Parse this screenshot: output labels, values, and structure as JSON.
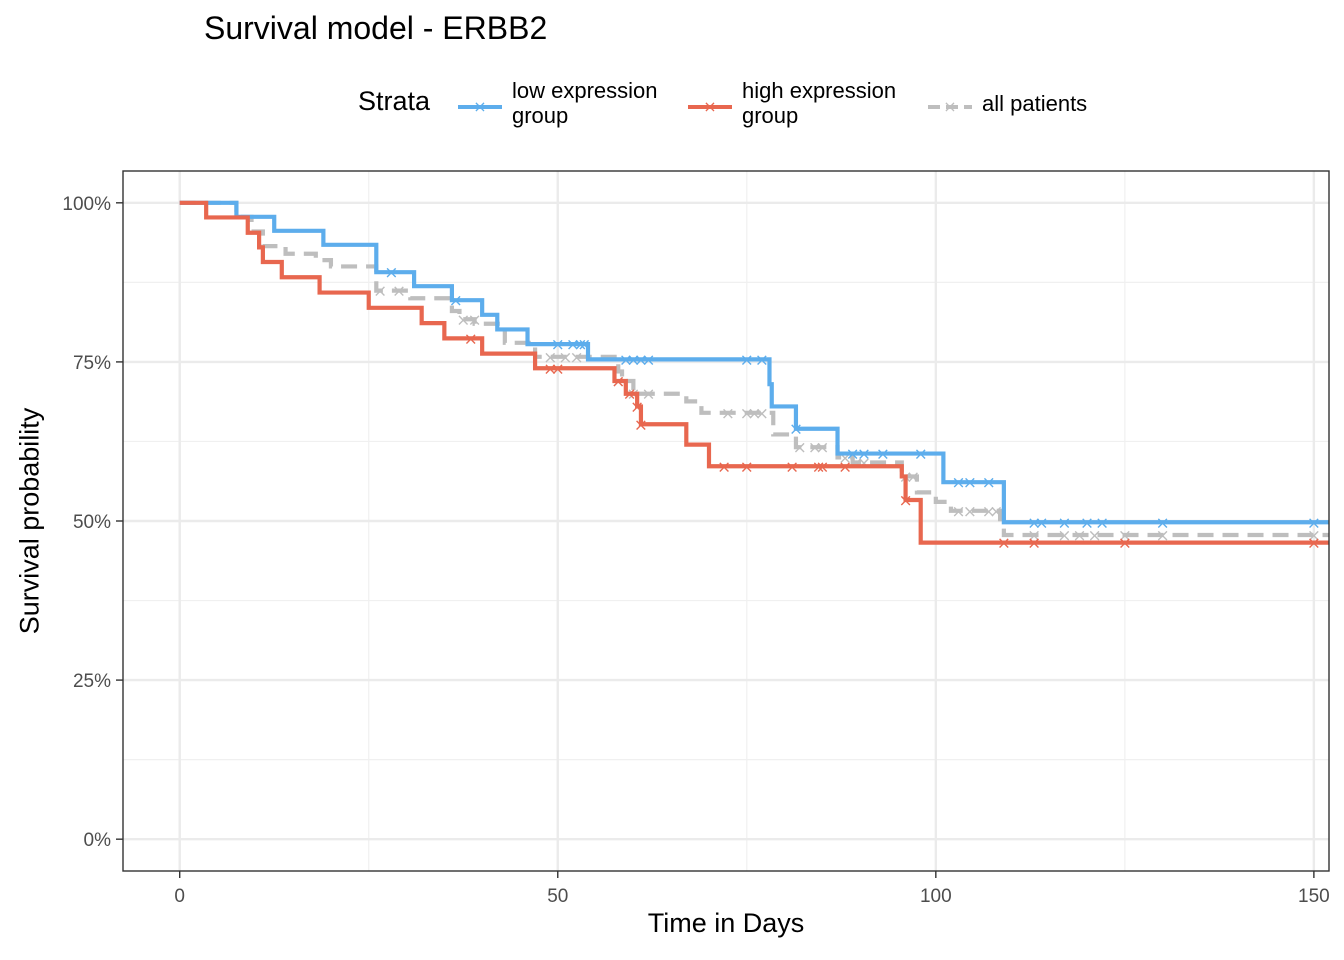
{
  "title": "Survival model - ERBB2",
  "legend": {
    "title": "Strata",
    "items": [
      {
        "label": "low expression\ngroup",
        "color": "#5DADEC",
        "dash": "solid"
      },
      {
        "label": "high expression\ngroup",
        "color": "#E8674F",
        "dash": "solid"
      },
      {
        "label": "all patients",
        "color": "#BEBEBE",
        "dash": "dashed"
      }
    ]
  },
  "chart_data": {
    "type": "line",
    "subtype": "kaplan-meier-step",
    "title": "Survival model - ERBB2",
    "xlabel": "Time in Days",
    "ylabel": "Survival probability",
    "xlim": [
      -7.5,
      152
    ],
    "ylim": [
      -0.05,
      1.05
    ],
    "x_ticks": [
      0,
      50,
      100,
      150
    ],
    "x_tick_labels": [
      "0",
      "50",
      "100",
      "150"
    ],
    "y_ticks": [
      0,
      0.25,
      0.5,
      0.75,
      1.0
    ],
    "y_tick_labels": [
      "0%",
      "25%",
      "50%",
      "75%",
      "100%"
    ],
    "grid": true,
    "legend_position": "top",
    "series": [
      {
        "name": "low expression\ngroup",
        "color": "#5DADEC",
        "dash": "solid",
        "steps": [
          [
            0,
            1.0
          ],
          [
            7.5,
            0.978
          ],
          [
            12.5,
            0.956
          ],
          [
            19,
            0.934
          ],
          [
            26,
            0.891
          ],
          [
            31,
            0.869
          ],
          [
            36,
            0.847
          ],
          [
            40,
            0.824
          ],
          [
            42,
            0.801
          ],
          [
            46,
            0.778
          ],
          [
            54,
            0.754
          ],
          [
            78,
            0.715
          ],
          [
            78.3,
            0.68
          ],
          [
            81.5,
            0.645
          ],
          [
            87,
            0.606
          ],
          [
            101,
            0.561
          ],
          [
            109,
            0.498
          ],
          [
            152,
            0.498
          ]
        ],
        "censor": [
          [
            28,
            0.891
          ],
          [
            36.5,
            0.847
          ],
          [
            50,
            0.778
          ],
          [
            52,
            0.778
          ],
          [
            53,
            0.778
          ],
          [
            53.5,
            0.778
          ],
          [
            59,
            0.754
          ],
          [
            60,
            0.754
          ],
          [
            61,
            0.754
          ],
          [
            62,
            0.754
          ],
          [
            75,
            0.754
          ],
          [
            77,
            0.754
          ],
          [
            81.5,
            0.645
          ],
          [
            89,
            0.606
          ],
          [
            90.5,
            0.606
          ],
          [
            93,
            0.606
          ],
          [
            98,
            0.606
          ],
          [
            103,
            0.561
          ],
          [
            104.5,
            0.561
          ],
          [
            107,
            0.561
          ],
          [
            113,
            0.498
          ],
          [
            114,
            0.498
          ],
          [
            117,
            0.498
          ],
          [
            120,
            0.498
          ],
          [
            122,
            0.498
          ],
          [
            130,
            0.498
          ],
          [
            150,
            0.498
          ]
        ]
      },
      {
        "name": "high expression\ngroup",
        "color": "#E8674F",
        "dash": "solid",
        "steps": [
          [
            0,
            1.0
          ],
          [
            3.5,
            0.977
          ],
          [
            9,
            0.953
          ],
          [
            10.5,
            0.93
          ],
          [
            11,
            0.907
          ],
          [
            13.5,
            0.883
          ],
          [
            18.5,
            0.859
          ],
          [
            25,
            0.835
          ],
          [
            32,
            0.811
          ],
          [
            35,
            0.787
          ],
          [
            40,
            0.763
          ],
          [
            47,
            0.74
          ],
          [
            57.5,
            0.72
          ],
          [
            59,
            0.7
          ],
          [
            60.5,
            0.68
          ],
          [
            61,
            0.652
          ],
          [
            67,
            0.62
          ],
          [
            70,
            0.586
          ],
          [
            95.5,
            0.57
          ],
          [
            96,
            0.533
          ],
          [
            98,
            0.466
          ],
          [
            152,
            0.466
          ]
        ],
        "censor": [
          [
            38.5,
            0.787
          ],
          [
            49,
            0.74
          ],
          [
            50,
            0.74
          ],
          [
            58,
            0.72
          ],
          [
            59.5,
            0.7
          ],
          [
            60.5,
            0.68
          ],
          [
            61,
            0.652
          ],
          [
            72,
            0.586
          ],
          [
            75,
            0.586
          ],
          [
            81,
            0.586
          ],
          [
            84.5,
            0.586
          ],
          [
            85,
            0.586
          ],
          [
            88,
            0.586
          ],
          [
            96,
            0.533
          ],
          [
            109,
            0.466
          ],
          [
            113,
            0.466
          ],
          [
            125,
            0.466
          ],
          [
            150,
            0.466
          ]
        ]
      },
      {
        "name": "all patients",
        "color": "#BEBEBE",
        "dash": "dashed",
        "steps": [
          [
            0,
            1.0
          ],
          [
            7.5,
            0.978
          ],
          [
            9.5,
            0.955
          ],
          [
            11,
            0.932
          ],
          [
            14,
            0.92
          ],
          [
            18,
            0.91
          ],
          [
            20,
            0.9
          ],
          [
            26,
            0.862
          ],
          [
            30.5,
            0.85
          ],
          [
            36,
            0.83
          ],
          [
            37,
            0.817
          ],
          [
            39,
            0.81
          ],
          [
            43,
            0.78
          ],
          [
            47,
            0.758
          ],
          [
            58,
            0.735
          ],
          [
            58.5,
            0.72
          ],
          [
            60,
            0.7
          ],
          [
            67,
            0.688
          ],
          [
            69,
            0.67
          ],
          [
            78.5,
            0.636
          ],
          [
            81.5,
            0.616
          ],
          [
            87,
            0.6
          ],
          [
            89,
            0.592
          ],
          [
            95.5,
            0.57
          ],
          [
            97.5,
            0.545
          ],
          [
            100,
            0.53
          ],
          [
            102,
            0.516
          ],
          [
            108.5,
            0.503
          ],
          [
            109,
            0.478
          ],
          [
            152,
            0.478
          ]
        ],
        "censor": [
          [
            26.5,
            0.862
          ],
          [
            29,
            0.862
          ],
          [
            37.5,
            0.817
          ],
          [
            39,
            0.817
          ],
          [
            49,
            0.758
          ],
          [
            51,
            0.758
          ],
          [
            52.5,
            0.758
          ],
          [
            58,
            0.72
          ],
          [
            60,
            0.7
          ],
          [
            62,
            0.7
          ],
          [
            72.5,
            0.67
          ],
          [
            75,
            0.67
          ],
          [
            76,
            0.67
          ],
          [
            77,
            0.67
          ],
          [
            82,
            0.616
          ],
          [
            84,
            0.616
          ],
          [
            85,
            0.616
          ],
          [
            88,
            0.6
          ],
          [
            89.5,
            0.592
          ],
          [
            90.5,
            0.592
          ],
          [
            96,
            0.57
          ],
          [
            97,
            0.57
          ],
          [
            103,
            0.516
          ],
          [
            104.5,
            0.516
          ],
          [
            107,
            0.516
          ],
          [
            108,
            0.516
          ],
          [
            113,
            0.478
          ],
          [
            117,
            0.478
          ],
          [
            119,
            0.478
          ],
          [
            121,
            0.478
          ],
          [
            125,
            0.478
          ],
          [
            130,
            0.478
          ],
          [
            150,
            0.478
          ]
        ]
      }
    ]
  }
}
